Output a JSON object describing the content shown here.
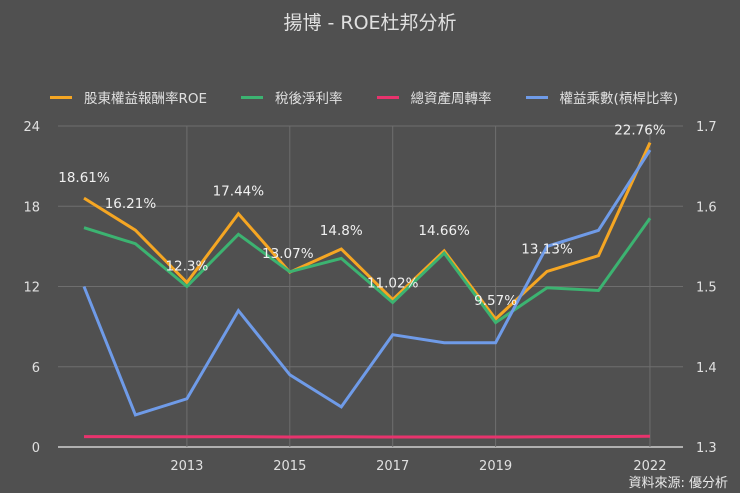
{
  "title": "揚博 - ROE杜邦分析",
  "source": "資料來源: 優分析",
  "legend": [
    {
      "label": "股東權益報酬率ROE",
      "color": "#f5a623"
    },
    {
      "label": "稅後淨利率",
      "color": "#3cb371"
    },
    {
      "label": "總資產周轉率",
      "color": "#e8336d"
    },
    {
      "label": "權益乘數(槓桿比率)",
      "color": "#6f9be8"
    }
  ],
  "chart_data": {
    "type": "line",
    "title": "揚博 - ROE杜邦分析",
    "x": [
      2011,
      2012,
      2013,
      2014,
      2015,
      2016,
      2017,
      2018,
      2019,
      2020,
      2021,
      2022
    ],
    "x_tick_labels": [
      "2013",
      "2015",
      "2017",
      "2019",
      "2022"
    ],
    "y_left": {
      "ticks": [
        0,
        6,
        12,
        18,
        24
      ],
      "range": [
        0,
        24
      ]
    },
    "y_right": {
      "ticks": [
        1.3,
        1.4,
        1.5,
        1.6,
        1.7
      ],
      "range": [
        1.3,
        1.7
      ]
    },
    "grid": true,
    "legend_position": "top",
    "series": [
      {
        "name": "股東權益報酬率ROE",
        "axis": "left",
        "color": "#f5a623",
        "values": [
          18.61,
          16.21,
          12.3,
          17.44,
          13.07,
          14.8,
          11.02,
          14.66,
          9.57,
          13.13,
          14.3,
          22.76
        ],
        "data_labels": [
          "18.61%",
          "16.21%",
          "12.3%",
          "17.44%",
          "13.07%",
          "14.8%",
          "11.02%",
          "14.66%",
          "9.57%",
          "13.13%",
          "",
          "22.76%"
        ]
      },
      {
        "name": "稅後淨利率",
        "axis": "left",
        "color": "#3cb371",
        "values": [
          16.4,
          15.2,
          12.0,
          15.9,
          13.1,
          14.1,
          10.8,
          14.5,
          9.3,
          11.9,
          11.7,
          17.1
        ]
      },
      {
        "name": "總資產周轉率",
        "axis": "left",
        "color": "#e8336d",
        "values": [
          0.78,
          0.77,
          0.77,
          0.78,
          0.75,
          0.76,
          0.75,
          0.75,
          0.75,
          0.76,
          0.78,
          0.8
        ]
      },
      {
        "name": "權益乘數(槓桿比率)",
        "axis": "right",
        "color": "#6f9be8",
        "values": [
          1.5,
          1.34,
          1.36,
          1.47,
          1.39,
          1.35,
          1.44,
          1.43,
          1.43,
          1.55,
          1.57,
          1.67
        ]
      }
    ]
  }
}
